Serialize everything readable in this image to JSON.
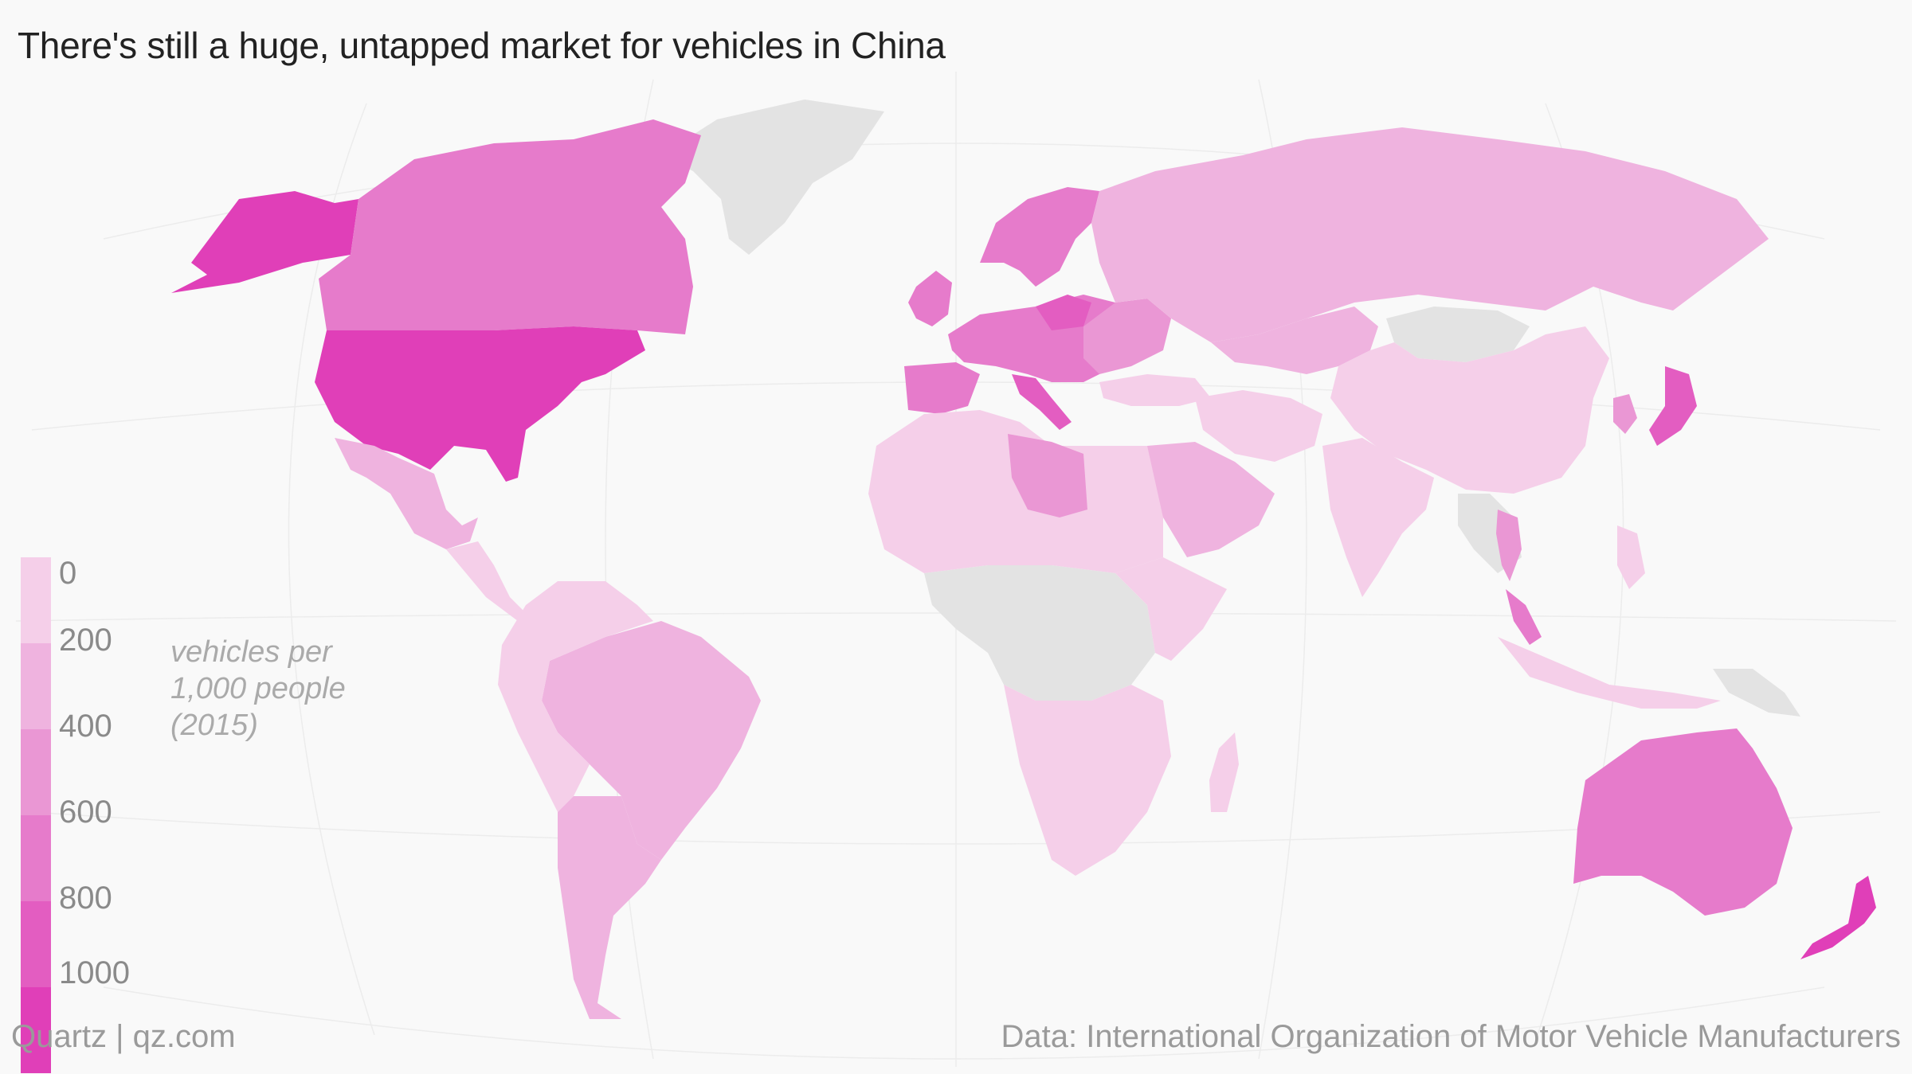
{
  "title": "There's still a huge, untapped market for vehicles in China",
  "legend": {
    "title_lines": [
      "vehicles per",
      "1,000 people",
      "(2015)"
    ],
    "ticks": [
      "0",
      "200",
      "400",
      "600",
      "800",
      "1000"
    ],
    "colors": [
      "#f5cfe9",
      "#efb3df",
      "#ea97d4",
      "#e67bcb",
      "#e35dc1",
      "#e03fb8"
    ]
  },
  "no_data_color": "#e3e3e3",
  "footer": {
    "left": "Quartz | qz.com",
    "right": "Data: International Organization of Motor Vehicle Manufacturers"
  }
}
